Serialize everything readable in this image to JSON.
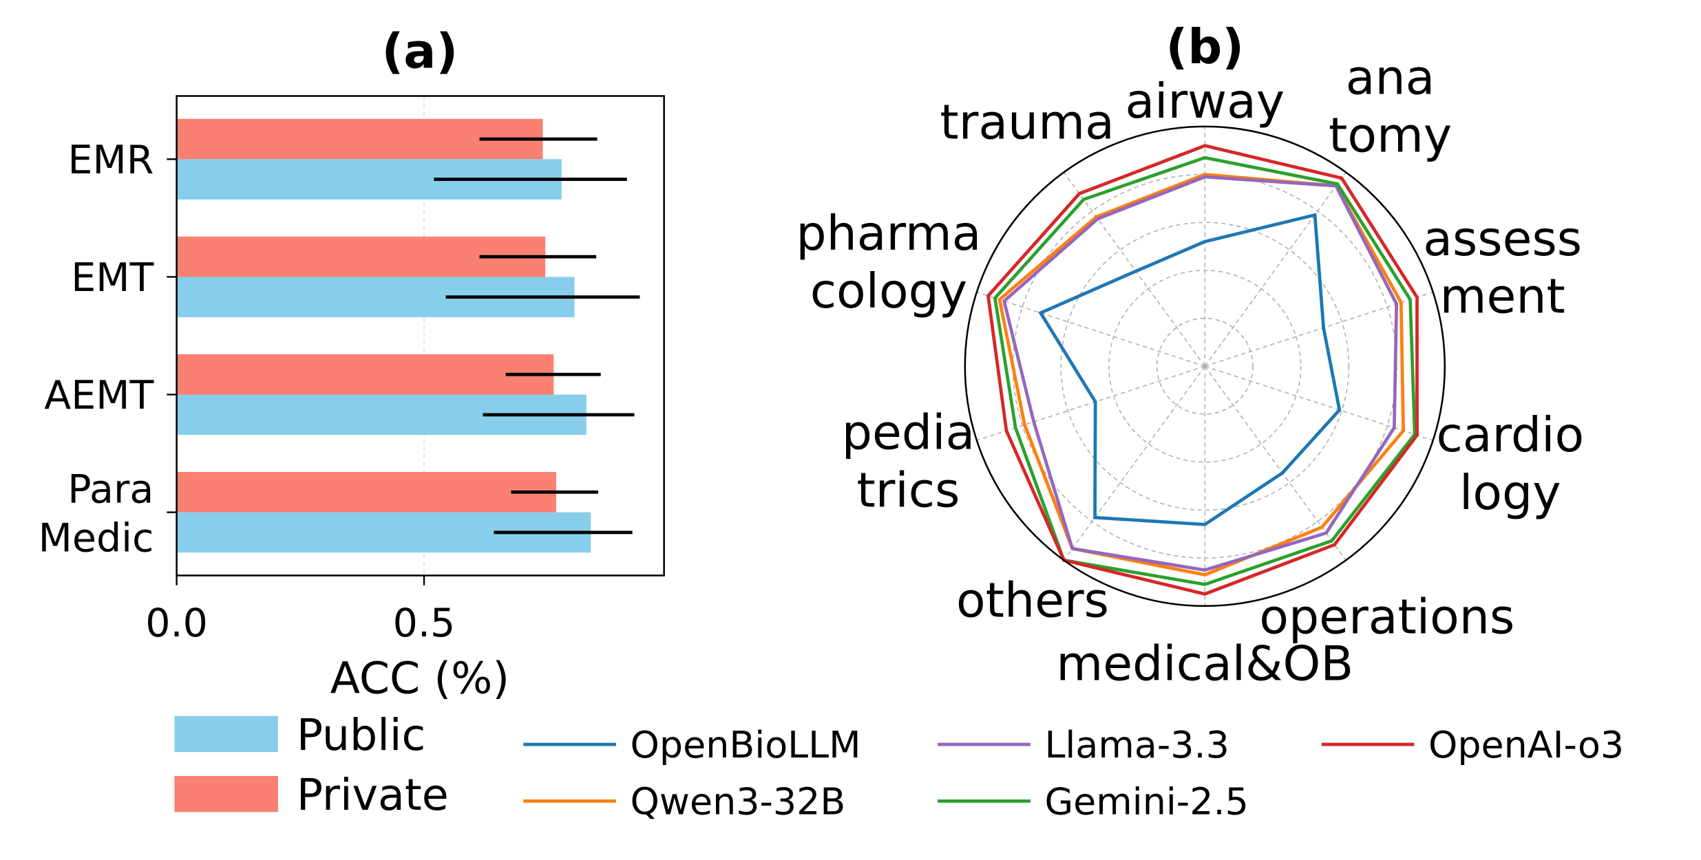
{
  "colors": {
    "public": "#87ceeb",
    "private": "#fa8072",
    "errorbar": "#000000",
    "grid": "#b0b0b0"
  },
  "chart_data": [
    {
      "type": "bar",
      "orientation": "horizontal",
      "title": "(a)",
      "xlabel": "ACC (%)",
      "ylabel": "",
      "xlim": [
        0.0,
        0.985
      ],
      "xticks": [
        "0.0",
        "0.5"
      ],
      "grid": "vertical dashed at 0.5",
      "categories": [
        [
          "EMR"
        ],
        [
          "EMT"
        ],
        [
          "AEMT"
        ],
        [
          "Para",
          "Medic"
        ]
      ],
      "series": [
        {
          "name": "Public",
          "color": "#87ceeb",
          "values": [
            0.778,
            0.804,
            0.828,
            0.837
          ],
          "error_low": [
            0.52,
            0.544,
            0.619,
            0.641
          ],
          "error_high": [
            0.91,
            0.936,
            0.925,
            0.921
          ]
        },
        {
          "name": "Private",
          "color": "#fa8072",
          "values": [
            0.74,
            0.745,
            0.762,
            0.767
          ],
          "error_low": [
            0.612,
            0.612,
            0.665,
            0.676
          ],
          "error_high": [
            0.85,
            0.848,
            0.857,
            0.852
          ]
        }
      ],
      "legend": "bottom-left"
    },
    {
      "type": "radar",
      "title": "(b)",
      "rlim": [
        0,
        1
      ],
      "rgrid": [
        0.2,
        0.4,
        0.6,
        0.8
      ],
      "direction": "clockwise from top",
      "categories": [
        [
          "airway"
        ],
        [
          "ana",
          "tomy"
        ],
        [
          "assess",
          "ment"
        ],
        [
          "cardio",
          "logy"
        ],
        [
          "operations"
        ],
        [
          "medical&OB"
        ],
        [
          "others"
        ],
        [
          "pedia",
          "trics"
        ],
        [
          "pharma",
          "cology"
        ],
        [
          "trauma"
        ]
      ],
      "series": [
        {
          "name": "OpenBioLLM",
          "color": "#1f77b4",
          "values": [
            0.52,
            0.78,
            0.52,
            0.59,
            0.55,
            0.66,
            0.78,
            0.48,
            0.72,
            0.49
          ]
        },
        {
          "name": "Qwen3-32B",
          "color": "#ff7f0e",
          "values": [
            0.8,
            0.93,
            0.86,
            0.87,
            0.83,
            0.87,
            0.94,
            0.79,
            0.9,
            0.77
          ]
        },
        {
          "name": "Llama-3.3",
          "color": "#9467bd",
          "values": [
            0.79,
            0.93,
            0.84,
            0.83,
            0.86,
            0.85,
            0.94,
            0.75,
            0.88,
            0.76
          ]
        },
        {
          "name": "Gemini-2.5",
          "color": "#2ca02c",
          "values": [
            0.87,
            0.94,
            0.9,
            0.92,
            0.9,
            0.91,
            1.0,
            0.83,
            0.92,
            0.86
          ]
        },
        {
          "name": "OpenAI-o3",
          "color": "#d62728",
          "values": [
            0.92,
            0.97,
            0.93,
            0.93,
            0.92,
            0.95,
            1.0,
            0.87,
            0.95,
            0.89
          ]
        }
      ],
      "legend": "bottom"
    }
  ]
}
